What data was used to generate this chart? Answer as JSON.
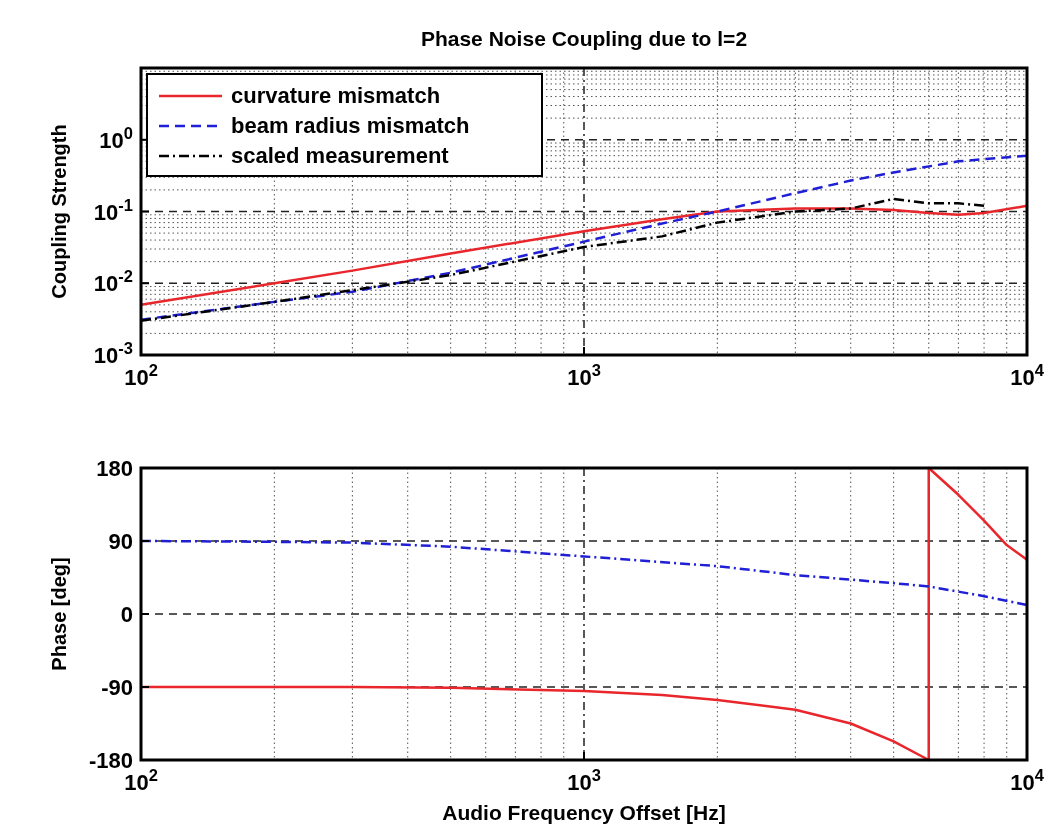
{
  "chart_data": [
    {
      "type": "line",
      "title": "Phase Noise Coupling due to l=2",
      "ylabel": "Coupling Strength",
      "log": "xy",
      "grid": true,
      "legend": "top left",
      "xlim": [
        100,
        10000
      ],
      "xticks": [
        {
          "value": 100,
          "label": "10$^{2}$"
        },
        {
          "value": 1000,
          "label": "10$^{3}$"
        },
        {
          "value": 10000,
          "label": "10$^{4}$"
        }
      ],
      "ylim": [
        0.001,
        10
      ],
      "yticks": [
        {
          "value": 0.001,
          "label": "10$^{-3}$"
        },
        {
          "value": 0.01,
          "label": "10$^{-2}$"
        },
        {
          "value": 0.1,
          "label": "10$^{-1}$"
        },
        {
          "value": 1,
          "label": "10$^{0}$"
        }
      ],
      "series": [
        {
          "name": "curvature mismatch",
          "color": "#e8262b",
          "line_style": "solid",
          "x": [
            100,
            200,
            300,
            500,
            1000,
            1500,
            2000,
            3000,
            4000,
            5000,
            6000,
            7000,
            8000,
            10000
          ],
          "values": [
            0.005,
            0.01,
            0.015,
            0.026,
            0.053,
            0.078,
            0.1,
            0.11,
            0.11,
            0.105,
            0.095,
            0.09,
            0.095,
            0.12
          ]
        },
        {
          "name": "beam radius mismatch",
          "color": "#1f1fd6",
          "line_style": "dashed",
          "x": [
            100,
            200,
            300,
            500,
            1000,
            1500,
            2000,
            3000,
            4000,
            5000,
            7000,
            10000
          ],
          "values": [
            0.0031,
            0.0055,
            0.0076,
            0.014,
            0.038,
            0.068,
            0.1,
            0.18,
            0.27,
            0.35,
            0.5,
            0.6
          ]
        },
        {
          "name": "scaled measurement",
          "color": "#000000",
          "line_style": "dashdot",
          "x": [
            100,
            200,
            300,
            500,
            1000,
            1500,
            2000,
            3000,
            4000,
            5000,
            6000,
            7000,
            8000
          ],
          "values": [
            0.003,
            0.0055,
            0.008,
            0.013,
            0.032,
            0.045,
            0.07,
            0.1,
            0.11,
            0.15,
            0.13,
            0.13,
            0.12
          ]
        }
      ]
    },
    {
      "type": "line",
      "xlabel": "Audio Frequency Offset [Hz]",
      "ylabel": "Phase [deg]",
      "log": "x",
      "grid": true,
      "xlim": [
        100,
        10000
      ],
      "xticks": [
        {
          "value": 100,
          "label": "10$^{2}$"
        },
        {
          "value": 1000,
          "label": "10$^{3}$"
        },
        {
          "value": 10000,
          "label": "10$^{4}$"
        }
      ],
      "ylim": [
        -180,
        180
      ],
      "yticks": [
        -180,
        -90,
        0,
        90,
        180
      ],
      "series": [
        {
          "color": "#e8262b",
          "line_style": "solid",
          "x": [
            100,
            300,
            500,
            1000,
            1500,
            2000,
            3000,
            4000,
            5000,
            6000,
            6000,
            7000,
            8000,
            9000,
            10000
          ],
          "values": [
            -90,
            -90,
            -91,
            -95,
            -100,
            -106,
            -118,
            -135,
            -157,
            -180,
            180,
            147,
            115,
            85,
            67
          ]
        },
        {
          "color": "#1f1fd6",
          "line_style": "dashdot",
          "x": [
            100,
            200,
            300,
            500,
            1000,
            2000,
            3000,
            5000,
            6000,
            8000,
            10000
          ],
          "values": [
            90,
            89,
            88,
            83,
            71,
            59,
            48,
            38,
            34,
            22,
            11
          ]
        }
      ]
    }
  ]
}
